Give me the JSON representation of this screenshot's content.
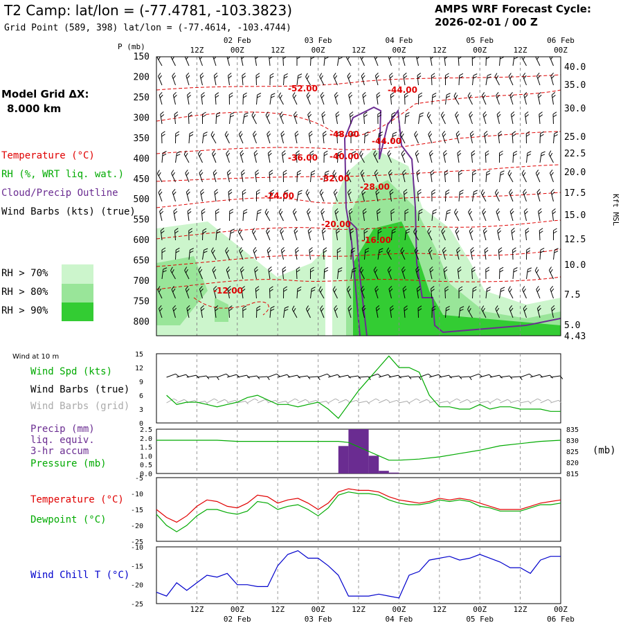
{
  "header": {
    "title": "T2 Camp:  lat/lon = (-77.4781, -103.3823)",
    "grid_point": "Grid Point (589, 398) lat/lon = (-77.4614, -103.4744)",
    "cycle_line1": "AMPS WRF Forecast Cycle:",
    "cycle_line2": "2026-02-01 / 00  Z"
  },
  "left_labels": {
    "model_grid": "Model Grid ΔX:",
    "model_grid_value": "8.000 km",
    "temperature": "Temperature (°C)",
    "rh": "RH (%, WRT liq. wat.)",
    "cloud": "Cloud/Precip Outline",
    "wind_barbs": "Wind Barbs (kts) (true)",
    "rh70": "RH > 70%",
    "rh80": "RH > 80%",
    "rh90": "RH > 90%",
    "wind10m": "Wind at 10 m",
    "wind_spd": "Wind Spd (kts)",
    "barbs_true": "Wind Barbs (true)",
    "barbs_grid": "Wind Barbs (grid)",
    "precip1": "Precip (mm)",
    "precip2": "liq. equiv.",
    "precip3": "3-hr accum",
    "pressure": "Pressure (mb)",
    "temp2": "Temperature (°C)",
    "dewpoint": "Dewpoint (°C)",
    "windchill": "Wind Chill T (°C)",
    "p_axis": "P (mb)",
    "kft": "Kft MSL",
    "mb_unit": "(mb)"
  },
  "colors": {
    "temp": "#e00000",
    "rh_green": "#00aa00",
    "cloud": "#6a2c91",
    "rh70": "#ccf5cc",
    "rh80": "#99e599",
    "rh90": "#33cc33",
    "windchill": "#0000cc",
    "grey": "#aaaaaa"
  },
  "top_time_labels": [
    {
      "hour": "12Z",
      "date": ""
    },
    {
      "hour": "00Z",
      "date": "02 Feb"
    },
    {
      "hour": "12Z",
      "date": ""
    },
    {
      "hour": "00Z",
      "date": "03 Feb"
    },
    {
      "hour": "12Z",
      "date": ""
    },
    {
      "hour": "00Z",
      "date": "04 Feb"
    },
    {
      "hour": "12Z",
      "date": ""
    },
    {
      "hour": "00Z",
      "date": "05 Feb"
    },
    {
      "hour": "12Z",
      "date": ""
    },
    {
      "hour": "00Z",
      "date": "06 Feb"
    }
  ],
  "pressure_levels": [
    "150",
    "200",
    "250",
    "300",
    "350",
    "400",
    "450",
    "500",
    "550",
    "600",
    "650",
    "700",
    "750",
    "800"
  ],
  "kft_labels": [
    "40.0",
    "35.0",
    "30.0",
    "25.0",
    "22.5",
    "20.0",
    "17.5",
    "15.0",
    "12.5",
    "10.0",
    "7.5",
    "5.0",
    "4.43"
  ],
  "temp_contour_labels": [
    "-52.00",
    "-44.00",
    "-48.00",
    "-44.00",
    "-36.00",
    "-40.00",
    "-32.00",
    "-28.00",
    "-24.00",
    "-20.00",
    "-16.00",
    "-12.00"
  ],
  "chart_data": [
    {
      "type": "line",
      "title": "Wind at 10 m",
      "ylabel": "Wind Spd (kts)",
      "ylim": [
        0,
        15
      ],
      "yticks": [
        "0",
        "3",
        "6",
        "9",
        "12",
        "15"
      ],
      "x_hours": [
        3,
        6,
        9,
        12,
        15,
        18,
        21,
        24,
        27,
        30,
        33,
        36,
        39,
        42,
        45,
        48,
        51,
        54,
        57,
        60,
        63,
        66,
        69,
        72,
        75,
        78,
        81,
        84,
        87,
        90,
        93,
        96,
        99,
        102,
        105,
        108,
        111,
        114,
        117,
        120
      ],
      "series": [
        {
          "name": "Wind Spd (kts)",
          "values": [
            6,
            4,
            4.5,
            4.5,
            4,
            3.5,
            4,
            4.5,
            5.5,
            6,
            5,
            4,
            4,
            3.5,
            4,
            4.5,
            3,
            1,
            4,
            7,
            9.5,
            12,
            14.5,
            12,
            12,
            11,
            6,
            3.5,
            3.5,
            3,
            3,
            4,
            3,
            3.5,
            3.5,
            3,
            3,
            3,
            2.5,
            2.5
          ]
        }
      ]
    },
    {
      "type": "bar",
      "title": "Precip / Pressure",
      "ylabel": "Precip (mm)",
      "ylim": [
        0,
        2.5
      ],
      "yticks": [
        "0.0",
        "0.5",
        "1.0",
        "1.5",
        "2.0",
        "2.5"
      ],
      "y2lim": [
        815,
        835
      ],
      "y2ticks": [
        "815",
        "820",
        "825",
        "830",
        "835"
      ],
      "precip_x_hours": [
        57,
        60,
        63,
        66,
        69,
        72
      ],
      "precip_values": [
        1.55,
        2.5,
        2.5,
        1.0,
        0.15,
        0.05
      ],
      "pressure_x_hours": [
        0,
        6,
        12,
        18,
        24,
        30,
        36,
        42,
        48,
        54,
        57,
        60,
        63,
        66,
        69,
        72,
        78,
        84,
        90,
        96,
        102,
        108,
        114,
        120
      ],
      "pressure_values": [
        830,
        830,
        830,
        830,
        829.5,
        829.5,
        829.5,
        829.5,
        829.5,
        829.5,
        829,
        827,
        825,
        823,
        821,
        821,
        821.5,
        822.5,
        824,
        825.5,
        827.5,
        828.5,
        829.5,
        830
      ]
    },
    {
      "type": "line",
      "title": "Temperature / Dewpoint",
      "ylim": [
        -25,
        -5
      ],
      "yticks": [
        "-25",
        "-20",
        "-15",
        "-10",
        "-5"
      ],
      "x_hours": [
        0,
        3,
        6,
        9,
        12,
        15,
        18,
        21,
        24,
        27,
        30,
        33,
        36,
        39,
        42,
        45,
        48,
        51,
        54,
        57,
        60,
        63,
        66,
        69,
        72,
        75,
        78,
        81,
        84,
        87,
        90,
        93,
        96,
        99,
        102,
        105,
        108,
        111,
        114,
        117,
        120
      ],
      "series": [
        {
          "name": "Temperature (°C)",
          "values": [
            -15,
            -17.5,
            -19,
            -17,
            -14,
            -12,
            -12.5,
            -14,
            -14.5,
            -13,
            -10.5,
            -11,
            -13,
            -12,
            -11.5,
            -13,
            -15,
            -13,
            -9.5,
            -8.5,
            -9,
            -9,
            -9.5,
            -11,
            -12,
            -12.5,
            -13,
            -12.5,
            -11.5,
            -12,
            -11.5,
            -12,
            -13,
            -14,
            -15,
            -15,
            -15,
            -14,
            -13,
            -12.5,
            -12
          ]
        },
        {
          "name": "Dewpoint (°C)",
          "values": [
            -16.5,
            -20,
            -22,
            -20,
            -17,
            -15,
            -15,
            -16,
            -16.5,
            -15.5,
            -12.5,
            -13,
            -15,
            -14,
            -13.5,
            -15,
            -17,
            -14.5,
            -10.5,
            -9.5,
            -10,
            -10,
            -10.5,
            -12,
            -13,
            -13.5,
            -13.5,
            -13,
            -12,
            -12.5,
            -12,
            -12.5,
            -14,
            -14.5,
            -15.5,
            -15.5,
            -15.5,
            -14.5,
            -13.5,
            -13.5,
            -13
          ]
        }
      ]
    },
    {
      "type": "line",
      "title": "Wind Chill",
      "ylabel": "Wind Chill T (°C)",
      "ylim": [
        -25,
        -10
      ],
      "yticks": [
        "-25",
        "-20",
        "-15",
        "-10"
      ],
      "x_hours": [
        0,
        3,
        6,
        9,
        12,
        15,
        18,
        21,
        24,
        27,
        30,
        33,
        36,
        39,
        42,
        45,
        48,
        51,
        54,
        57,
        60,
        63,
        66,
        69,
        72,
        75,
        78,
        81,
        84,
        87,
        90,
        93,
        96,
        99,
        102,
        105,
        108,
        111,
        114,
        117,
        120
      ],
      "series": [
        {
          "name": "Wind Chill T (°C)",
          "values": [
            -22,
            -23,
            -19.5,
            -21.5,
            -19.5,
            -17.5,
            -18,
            -17,
            -20,
            -20,
            -20.5,
            -20.5,
            -15,
            -12,
            -11,
            -13,
            -13,
            -15,
            -17.5,
            -23,
            -23,
            -23,
            -22.5,
            -23,
            -23.5,
            -17.5,
            -16.5,
            -13.5,
            -13,
            -12.5,
            -13.5,
            -13,
            -12,
            -13,
            -14,
            -15.5,
            -15.5,
            -17,
            -13.5,
            -12.5,
            -12.5
          ]
        }
      ]
    }
  ]
}
